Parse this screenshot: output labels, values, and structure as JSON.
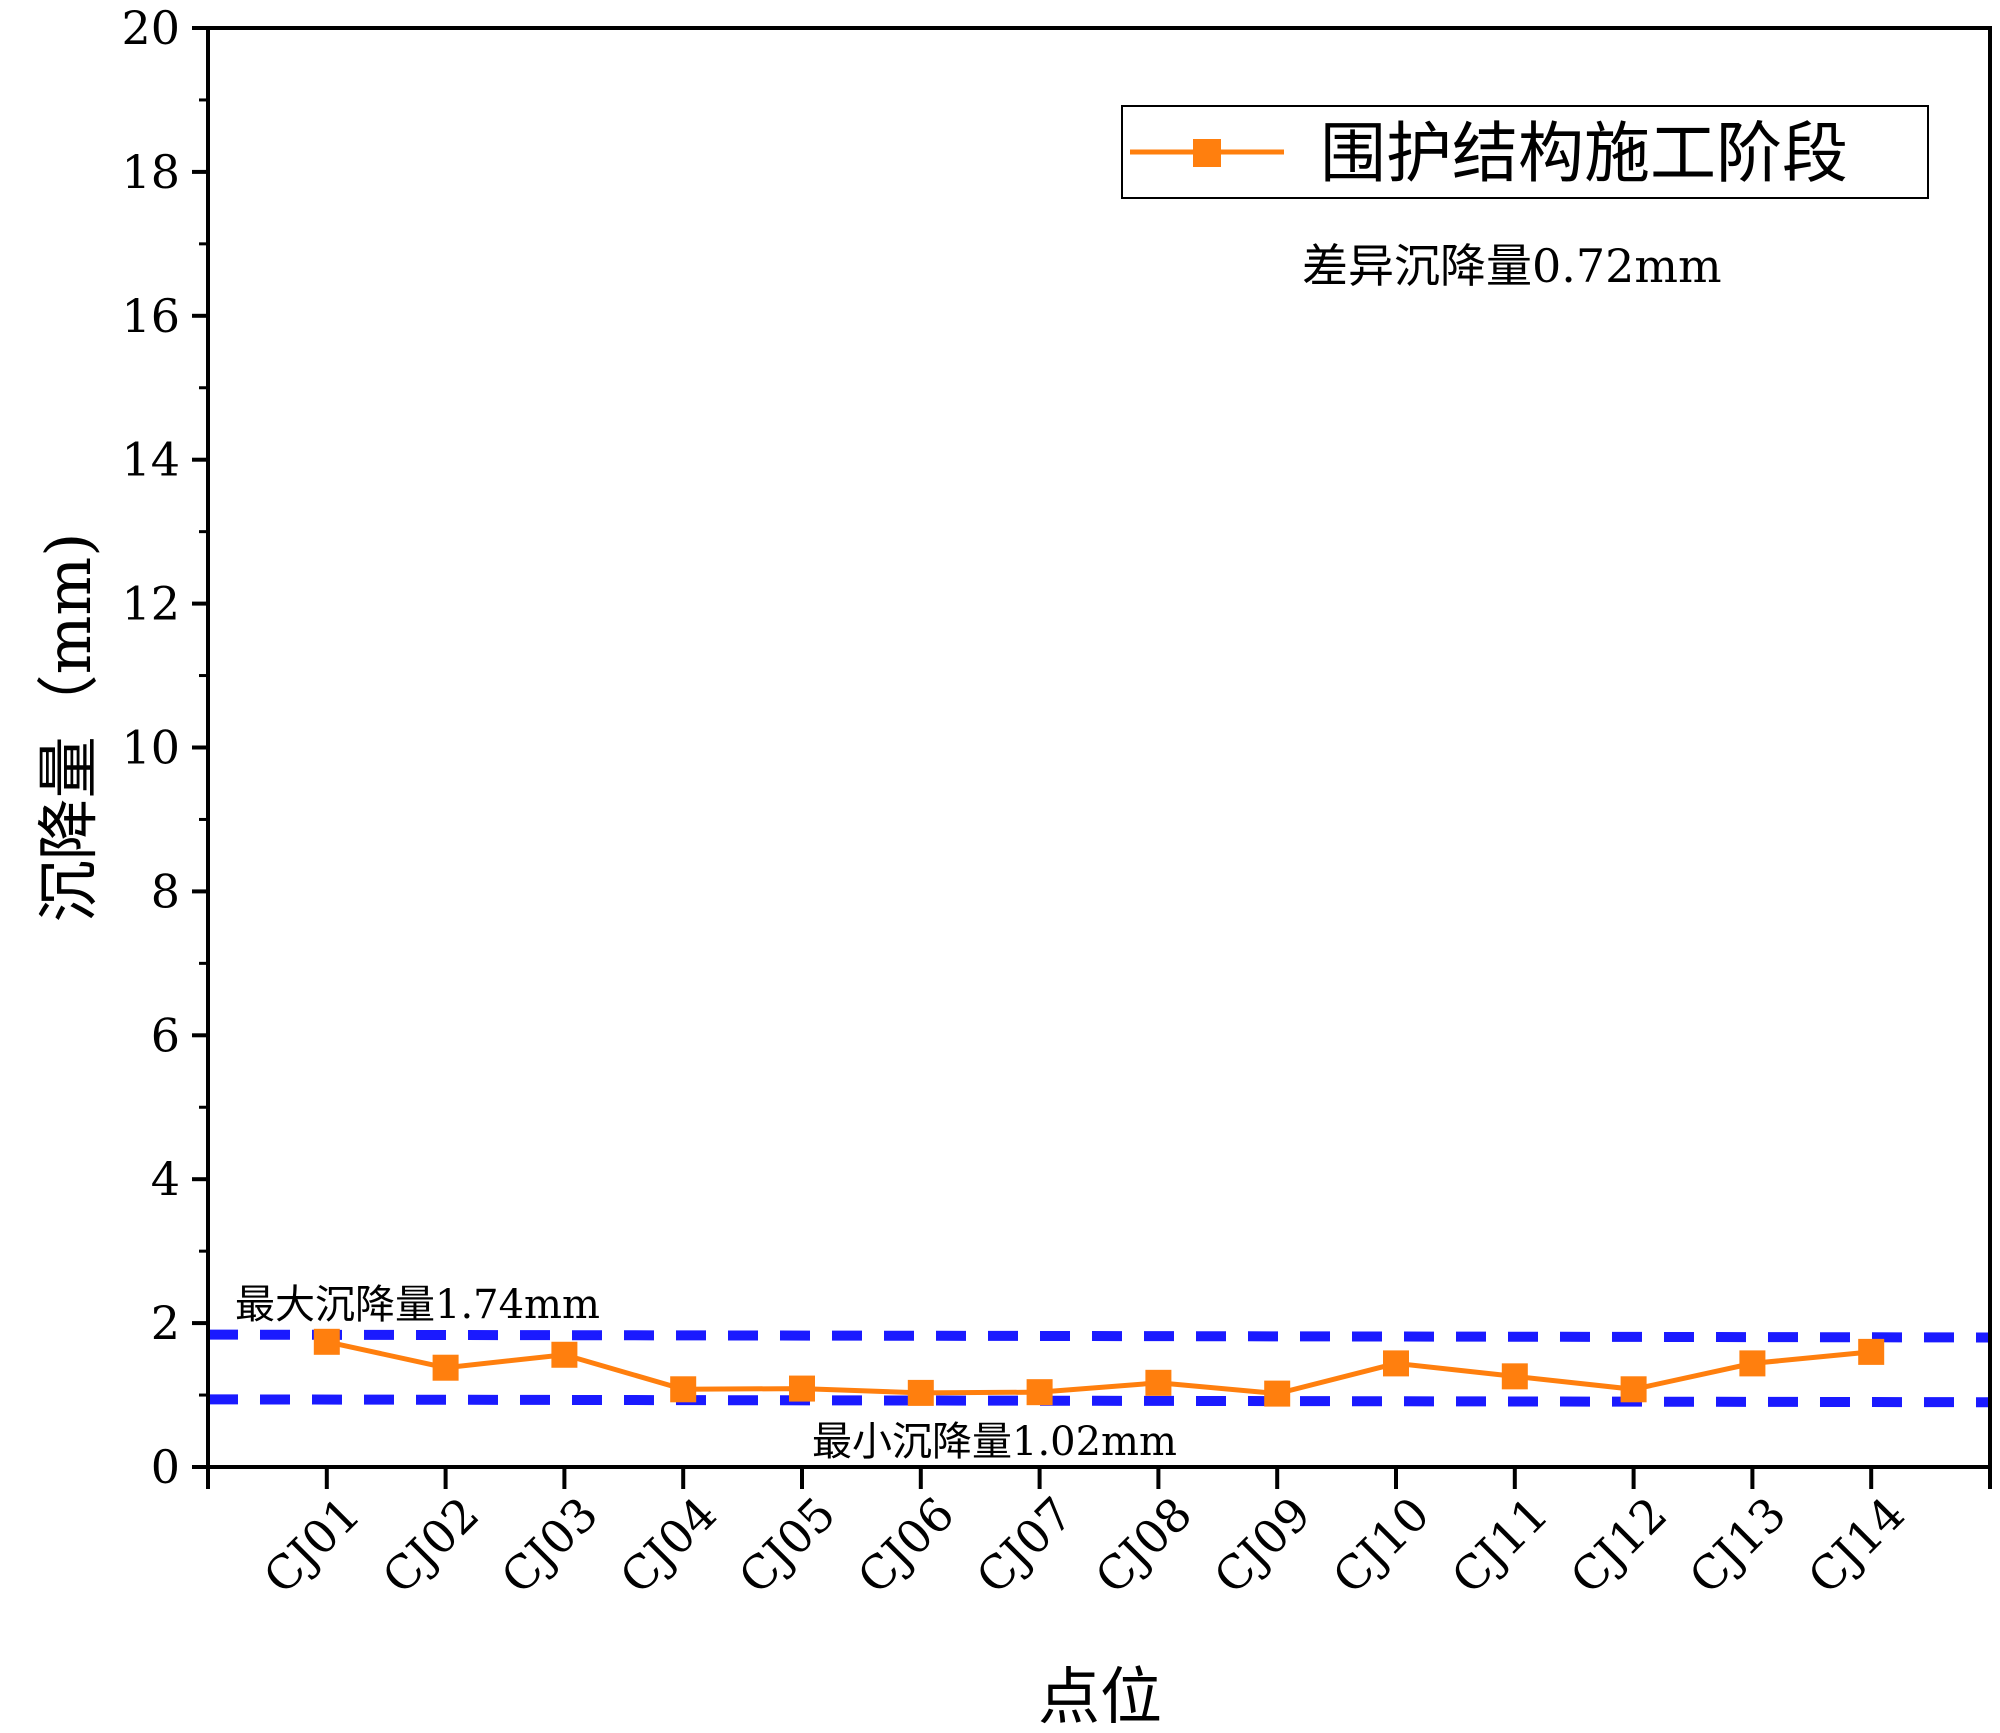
{
  "chart_data": {
    "type": "line",
    "xlabel": "点位",
    "ylabel": "沉降量（mm)",
    "ylim": [
      0,
      20
    ],
    "y_ticks": [
      0,
      2,
      4,
      6,
      8,
      10,
      12,
      14,
      16,
      18,
      20
    ],
    "categories": [
      "CJ01",
      "CJ02",
      "CJ03",
      "CJ04",
      "CJ05",
      "CJ06",
      "CJ07",
      "CJ08",
      "CJ09",
      "CJ10",
      "CJ11",
      "CJ12",
      "CJ13",
      "CJ14"
    ],
    "series": [
      {
        "name": "围护结构施工阶段",
        "color": "#ff7f0e",
        "marker": "square",
        "values": [
          1.74,
          1.38,
          1.56,
          1.08,
          1.09,
          1.03,
          1.04,
          1.17,
          1.02,
          1.44,
          1.26,
          1.08,
          1.44,
          1.6
        ]
      }
    ],
    "reference_lines": [
      {
        "label": "最大沉降量1.74mm",
        "y_start": 1.84,
        "y_end": 1.8,
        "color": "#1a1aff",
        "style": "dashed"
      },
      {
        "label": "最小沉降量1.02mm",
        "y_start": 0.94,
        "y_end": 0.9,
        "color": "#1a1aff",
        "style": "dashed"
      }
    ],
    "annotations": [
      {
        "text": "差异沉降量0.72mm"
      }
    ],
    "legend": {
      "position": "top-right"
    },
    "grid": false
  }
}
